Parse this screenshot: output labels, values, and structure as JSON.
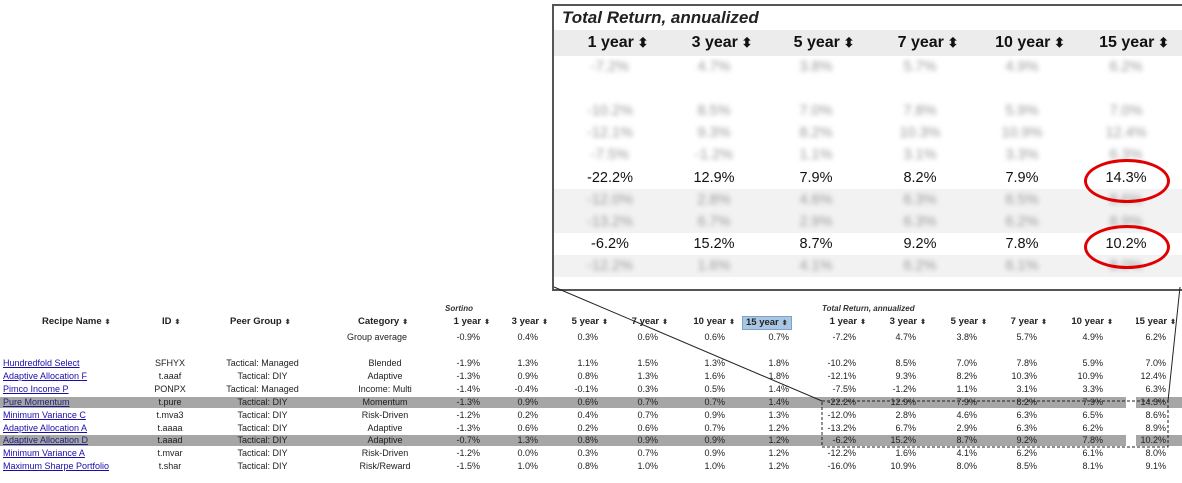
{
  "callout": {
    "title": "Total Return, annualized",
    "headers": [
      "1 year",
      "3 year",
      "5 year",
      "7 year",
      "10 year",
      "15 year"
    ],
    "rows": [
      {
        "values": [
          "-7.2%",
          "4.7%",
          "3.8%",
          "5.7%",
          "4.9%",
          "6.2%"
        ],
        "blurred": true
      },
      {
        "values": [
          "",
          "",
          "",
          "",
          "",
          ""
        ],
        "blurred": true
      },
      {
        "values": [
          "-10.2%",
          "8.5%",
          "7.0%",
          "7.8%",
          "5.9%",
          "7.0%"
        ],
        "blurred": true
      },
      {
        "values": [
          "-12.1%",
          "9.3%",
          "8.2%",
          "10.3%",
          "10.9%",
          "12.4%"
        ],
        "blurred": true
      },
      {
        "values": [
          "-7.5%",
          "-1.2%",
          "1.1%",
          "3.1%",
          "3.3%",
          "6.3%"
        ],
        "blurred": true
      },
      {
        "values": [
          "-22.2%",
          "12.9%",
          "7.9%",
          "8.2%",
          "7.9%",
          "14.3%"
        ],
        "blurred": false
      },
      {
        "values": [
          "-12.0%",
          "2.8%",
          "4.6%",
          "6.3%",
          "6.5%",
          "8.6%"
        ],
        "blurred": true
      },
      {
        "values": [
          "-13.2%",
          "6.7%",
          "2.9%",
          "6.3%",
          "6.2%",
          "8.9%"
        ],
        "blurred": true
      },
      {
        "values": [
          "-6.2%",
          "15.2%",
          "8.7%",
          "9.2%",
          "7.8%",
          "10.2%"
        ],
        "blurred": false
      },
      {
        "values": [
          "-12.2%",
          "1.6%",
          "4.1%",
          "6.2%",
          "6.1%",
          "8.0%"
        ],
        "blurred": true
      }
    ]
  },
  "table": {
    "group_sortino": "Sortino",
    "group_total_return": "Total Return, annualized",
    "headers": {
      "recipe_name": "Recipe Name",
      "id": "ID",
      "peer_group": "Peer Group",
      "category": "Category",
      "sortino": [
        "1 year",
        "3 year",
        "5 year",
        "7 year",
        "10 year",
        "15 year"
      ],
      "total_return": [
        "1 year",
        "3 year",
        "5 year",
        "7 year",
        "10 year",
        "15 year"
      ]
    },
    "sort_arrow_icon": "sort-updown-icon",
    "group_average": {
      "label": "Group average",
      "sortino": [
        "-0.9%",
        "0.4%",
        "0.3%",
        "0.6%",
        "0.6%",
        "0.7%"
      ],
      "total_return": [
        "-7.2%",
        "4.7%",
        "3.8%",
        "5.7%",
        "4.9%",
        "6.2%"
      ]
    },
    "rows": [
      {
        "name": "Hundredfold Select",
        "id": "SFHYX",
        "peer": "Tactical: Managed",
        "category": "Blended",
        "sortino": [
          "-1.9%",
          "1.3%",
          "1.1%",
          "1.5%",
          "1.3%",
          "1.8%"
        ],
        "total_return": [
          "-10.2%",
          "8.5%",
          "7.0%",
          "7.8%",
          "5.9%",
          "7.0%"
        ],
        "highlight": false
      },
      {
        "name": "Adaptive Allocation F",
        "id": "t.aaaf",
        "peer": "Tactical: DIY",
        "category": "Adaptive",
        "sortino": [
          "-1.3%",
          "0.9%",
          "0.8%",
          "1.3%",
          "1.6%",
          "1.8%"
        ],
        "total_return": [
          "-12.1%",
          "9.3%",
          "8.2%",
          "10.3%",
          "10.9%",
          "12.4%"
        ],
        "highlight": false
      },
      {
        "name": "Pimco Income P",
        "id": "PONPX",
        "peer": "Tactical: Managed",
        "category": "Income: Multi",
        "sortino": [
          "-1.4%",
          "-0.4%",
          "-0.1%",
          "0.3%",
          "0.5%",
          "1.4%"
        ],
        "total_return": [
          "-7.5%",
          "-1.2%",
          "1.1%",
          "3.1%",
          "3.3%",
          "6.3%"
        ],
        "highlight": false
      },
      {
        "name": "Pure Momentum",
        "id": "t.pure",
        "peer": "Tactical: DIY",
        "category": "Momentum",
        "sortino": [
          "-1.3%",
          "0.9%",
          "0.6%",
          "0.7%",
          "0.7%",
          "1.4%"
        ],
        "total_return": [
          "-22.2%",
          "12.9%",
          "7.9%",
          "8.2%",
          "7.9%",
          "14.3%"
        ],
        "highlight": true
      },
      {
        "name": "Minimum Variance C",
        "id": "t.mva3",
        "peer": "Tactical: DIY",
        "category": "Risk-Driven",
        "sortino": [
          "-1.2%",
          "0.2%",
          "0.4%",
          "0.7%",
          "0.9%",
          "1.3%"
        ],
        "total_return": [
          "-12.0%",
          "2.8%",
          "4.6%",
          "6.3%",
          "6.5%",
          "8.6%"
        ],
        "highlight": false
      },
      {
        "name": "Adaptive Allocation A",
        "id": "t.aaaa",
        "peer": "Tactical: DIY",
        "category": "Adaptive",
        "sortino": [
          "-1.3%",
          "0.6%",
          "0.2%",
          "0.6%",
          "0.7%",
          "1.2%"
        ],
        "total_return": [
          "-13.2%",
          "6.7%",
          "2.9%",
          "6.3%",
          "6.2%",
          "8.9%"
        ],
        "highlight": false
      },
      {
        "name": "Adaptive Allocation D",
        "id": "t.aaad",
        "peer": "Tactical: DIY",
        "category": "Adaptive",
        "sortino": [
          "-0.7%",
          "1.3%",
          "0.8%",
          "0.9%",
          "0.9%",
          "1.2%"
        ],
        "total_return": [
          "-6.2%",
          "15.2%",
          "8.7%",
          "9.2%",
          "7.8%",
          "10.2%"
        ],
        "highlight": true
      },
      {
        "name": "Minimum Variance A",
        "id": "t.mvar",
        "peer": "Tactical: DIY",
        "category": "Risk-Driven",
        "sortino": [
          "-1.2%",
          "0.0%",
          "0.3%",
          "0.7%",
          "0.9%",
          "1.2%"
        ],
        "total_return": [
          "-12.2%",
          "1.6%",
          "4.1%",
          "6.2%",
          "6.1%",
          "8.0%"
        ],
        "highlight": false
      },
      {
        "name": "Maximum Sharpe Portfolio",
        "id": "t.shar",
        "peer": "Tactical: DIY",
        "category": "Risk/Reward",
        "sortino": [
          "-1.5%",
          "1.0%",
          "0.8%",
          "1.0%",
          "1.0%",
          "1.2%"
        ],
        "total_return": [
          "-16.0%",
          "10.9%",
          "8.0%",
          "8.5%",
          "8.1%",
          "9.1%"
        ],
        "highlight": false
      }
    ]
  },
  "colors": {
    "highlight_row": "#a6a6a6",
    "sorted_header": "#a9c7e4",
    "link": "#1a0dab",
    "ring": "#e00000"
  }
}
